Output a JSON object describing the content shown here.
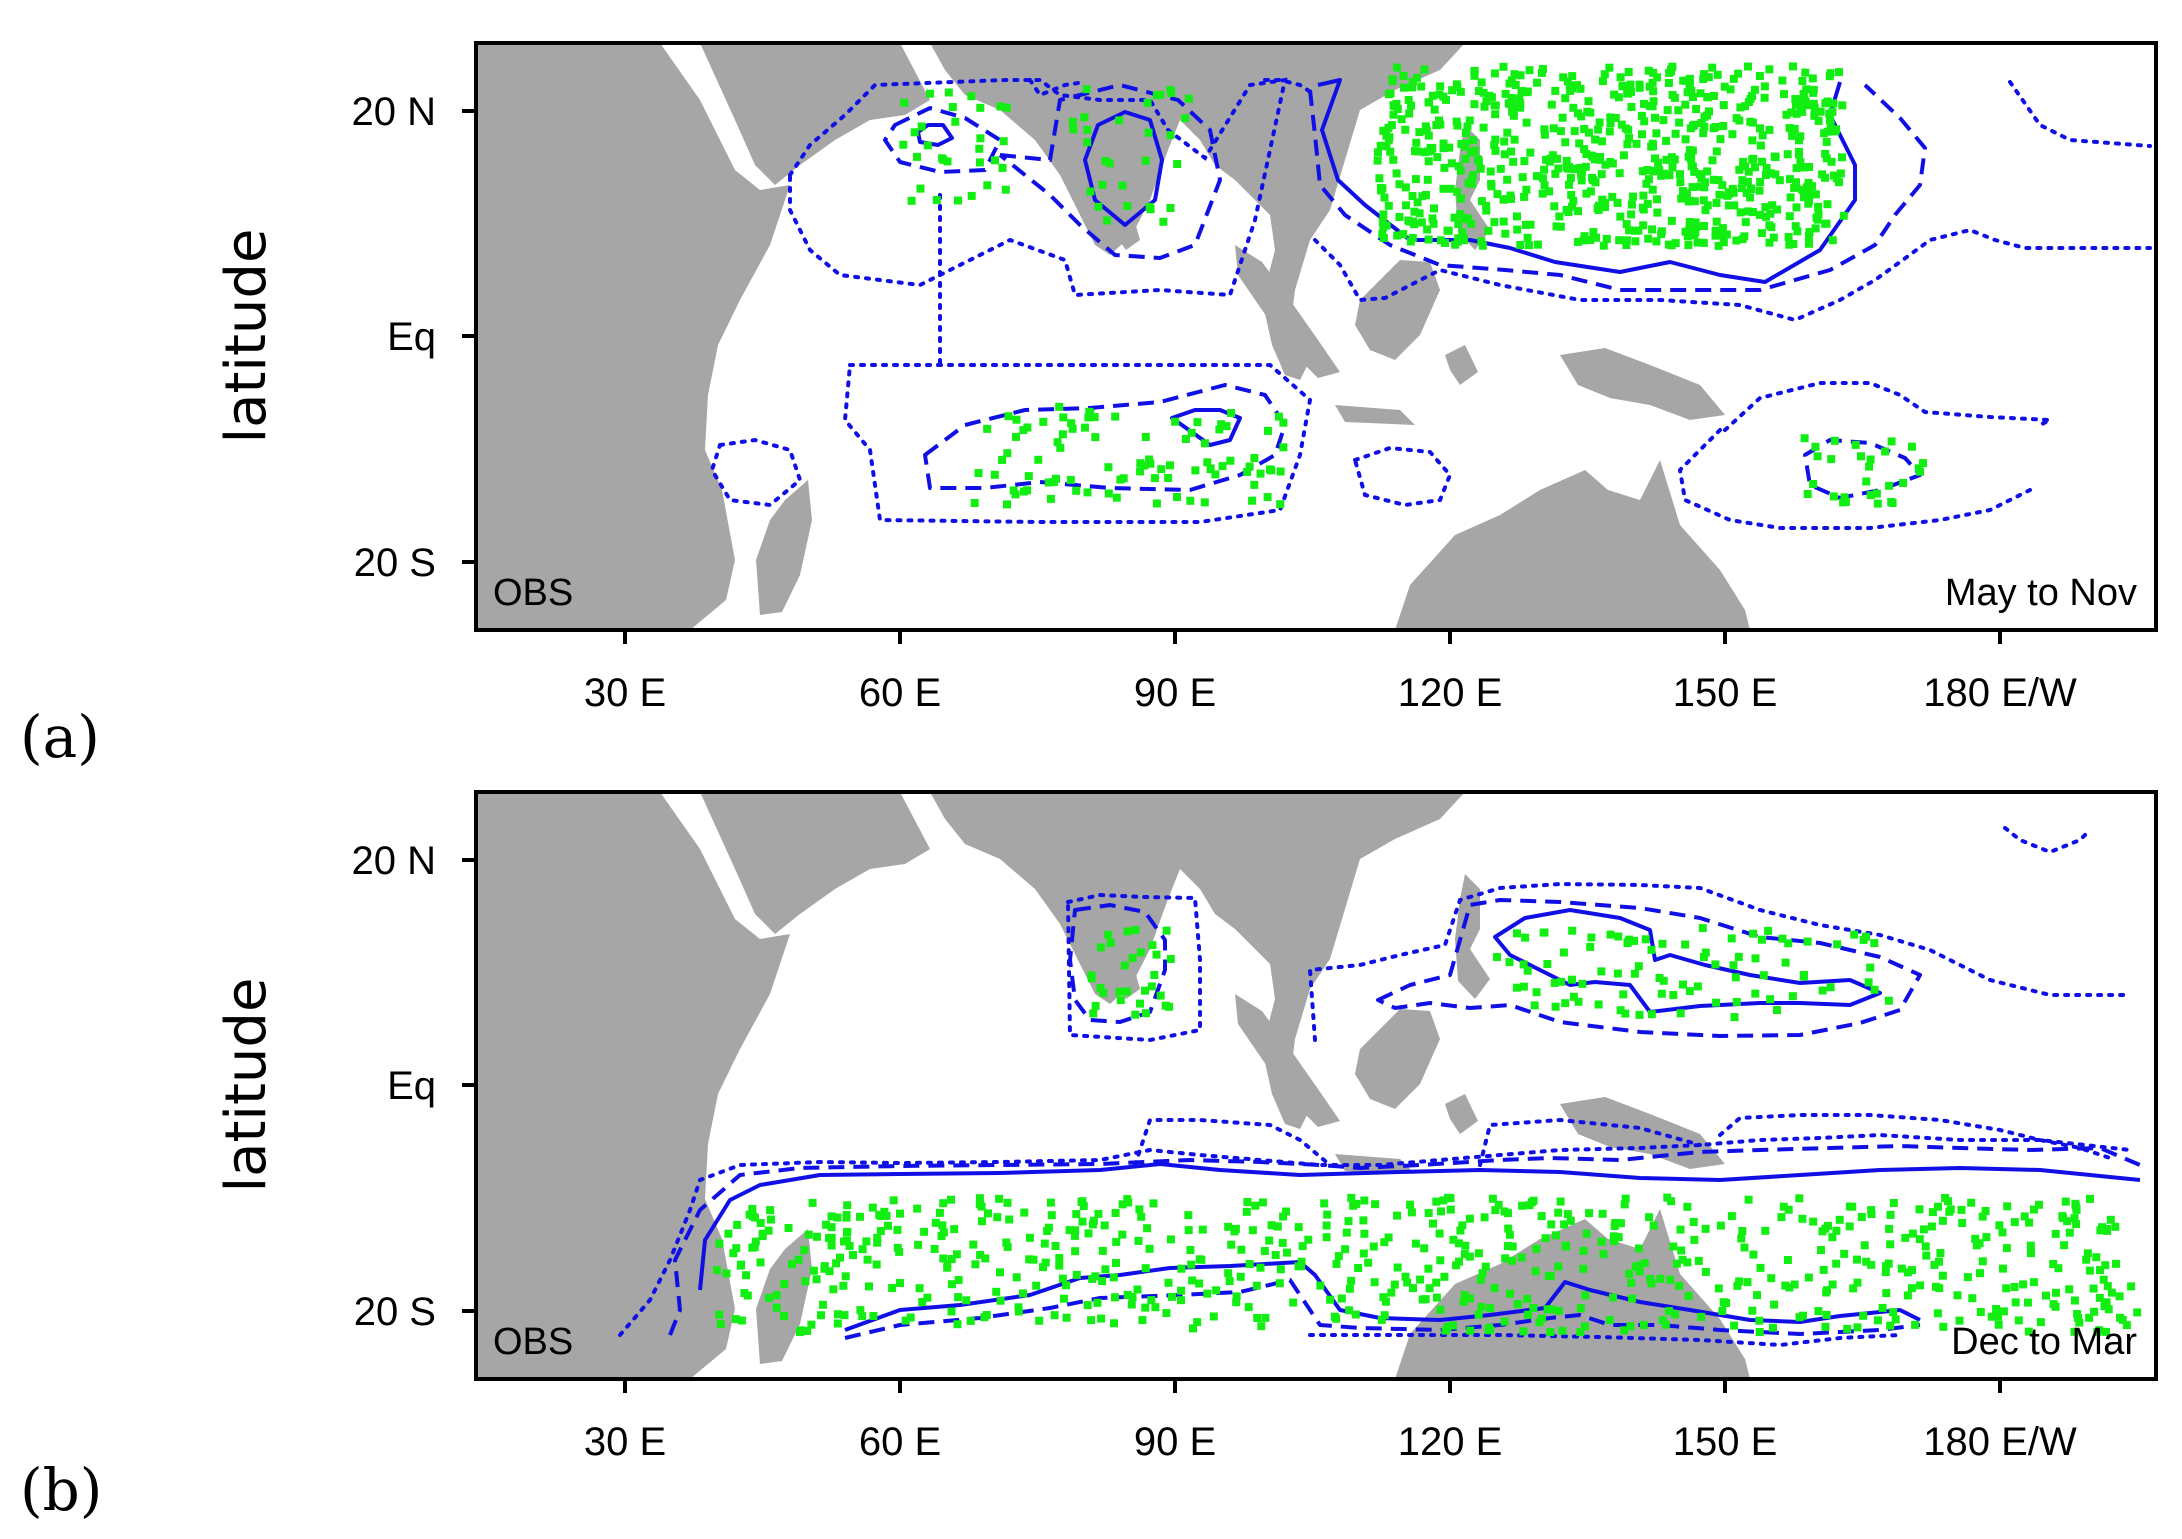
{
  "panels": [
    {
      "letter": "(a)",
      "ylabel": "latitude",
      "source_label": "OBS",
      "season_label": "May to Nov",
      "lat_ticks": [
        "20 N",
        "Eq",
        "20 S"
      ],
      "lon_ticks": [
        "30 E",
        "60 E",
        "90 E",
        "120 E",
        "150 E",
        "180 E/W"
      ],
      "convergence_clusters": [
        {
          "lon": [
            112,
            163
          ],
          "lat": [
            8,
            24
          ],
          "density": "high"
        },
        {
          "lon": [
            68,
            102
          ],
          "lat": [
            -15,
            -6
          ],
          "density": "medium"
        },
        {
          "lon": [
            78,
            92
          ],
          "lat": [
            10,
            22
          ],
          "density": "low"
        },
        {
          "lon": [
            60,
            72
          ],
          "lat": [
            12,
            22
          ],
          "density": "low"
        },
        {
          "lon": [
            158,
            172
          ],
          "lat": [
            -15,
            -9
          ],
          "density": "low"
        }
      ]
    },
    {
      "letter": "(b)",
      "ylabel": "latitude",
      "source_label": "OBS",
      "season_label": "Dec to Mar",
      "lat_ticks": [
        "20 N",
        "Eq",
        "20 S"
      ],
      "lon_ticks": [
        "30 E",
        "60 E",
        "90 E",
        "120 E",
        "150 E",
        "180 E/W"
      ],
      "convergence_clusters": [
        {
          "lon": [
            40,
            195
          ],
          "lat": [
            -22,
            -10
          ],
          "density": "high"
        },
        {
          "lon": [
            125,
            168
          ],
          "lat": [
            6,
            14
          ],
          "density": "medium"
        },
        {
          "lon": [
            80,
            90
          ],
          "lat": [
            6,
            14
          ],
          "density": "low"
        }
      ]
    }
  ],
  "colors": {
    "land": "#a6a6a6",
    "contour": "#1010e6",
    "points": "#12ee12"
  },
  "contour_styles": [
    "solid",
    "dashed",
    "dotted"
  ]
}
